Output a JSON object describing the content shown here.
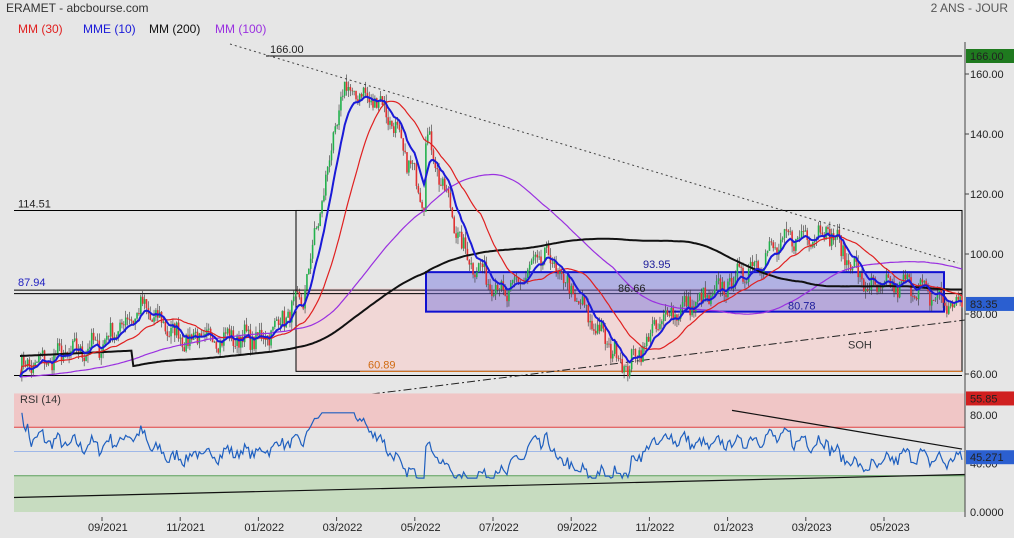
{
  "header": {
    "title": "ERAMET - abcbourse.com",
    "period": "2 ANS - JOUR",
    "legend": [
      {
        "label": "MM (30)",
        "color": "#e02020"
      },
      {
        "label": "MME (10)",
        "color": "#1a1ad8"
      },
      {
        "label": "MM (200)",
        "color": "#111111"
      },
      {
        "label": "MM (100)",
        "color": "#9a30e0"
      }
    ]
  },
  "chart_data": [
    {
      "type": "candlestick",
      "name": "price",
      "ylim": [
        55,
        170
      ],
      "yticks": [
        "60.00",
        "80.00",
        "100.00",
        "120.00",
        "140.00",
        "160.00"
      ],
      "x_ticks": [
        "09/2021",
        "11/2021",
        "01/2022",
        "03/2022",
        "05/2022",
        "07/2022",
        "09/2022",
        "11/2022",
        "01/2023",
        "03/2023",
        "05/2023"
      ],
      "last_price": "83.35",
      "marker_high": "166.00",
      "marker_low": "55.85",
      "levels": [
        "166.00",
        "114.51",
        "87.94",
        "60.89",
        "93.95",
        "86.66",
        "80.78"
      ],
      "annotation": "SOH",
      "key_points": [
        {
          "date": "2021-07",
          "close": 62
        },
        {
          "date": "2021-09",
          "close": 70
        },
        {
          "date": "2021-10",
          "close": 82
        },
        {
          "date": "2021-11",
          "close": 72
        },
        {
          "date": "2022-01",
          "close": 72
        },
        {
          "date": "2022-02",
          "close": 85
        },
        {
          "date": "2022-03",
          "close": 155
        },
        {
          "date": "2022-04",
          "close": 150
        },
        {
          "date": "2022-05",
          "close": 118
        },
        {
          "date": "2022-05",
          "close": 142
        },
        {
          "date": "2022-06",
          "close": 100
        },
        {
          "date": "2022-07",
          "close": 86
        },
        {
          "date": "2022-08",
          "close": 100
        },
        {
          "date": "2022-09",
          "close": 80
        },
        {
          "date": "2022-10",
          "close": 62
        },
        {
          "date": "2022-11",
          "close": 80
        },
        {
          "date": "2022-12",
          "close": 85
        },
        {
          "date": "2023-02",
          "close": 105
        },
        {
          "date": "2023-03",
          "close": 108
        },
        {
          "date": "2023-04",
          "close": 88
        },
        {
          "date": "2023-05",
          "close": 90
        },
        {
          "date": "2023-06",
          "close": 83
        }
      ]
    },
    {
      "type": "line",
      "name": "RSI (14)",
      "ylim": [
        0,
        100
      ],
      "yticks": [
        "0.0000",
        "40.00",
        "80.00"
      ],
      "last_value": "45.271",
      "overbought": 70,
      "oversold": 30
    }
  ]
}
